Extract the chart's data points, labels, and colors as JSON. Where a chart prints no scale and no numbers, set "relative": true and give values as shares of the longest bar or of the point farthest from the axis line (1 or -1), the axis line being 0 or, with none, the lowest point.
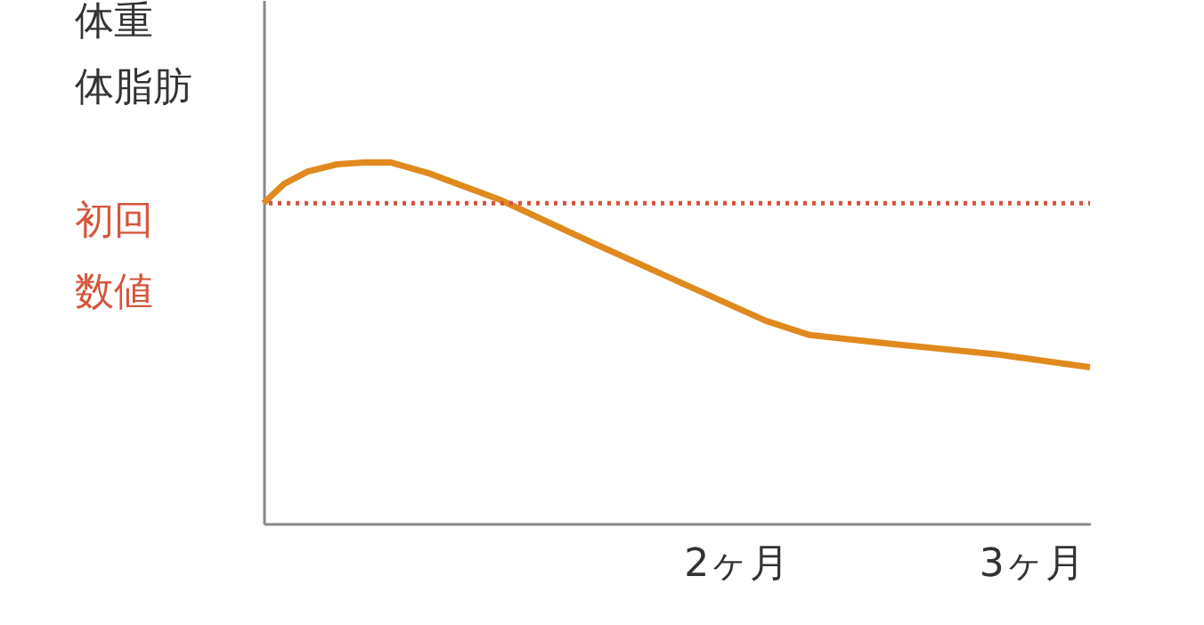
{
  "chart_data": {
    "type": "line",
    "relative": true,
    "ylabel": "体重体脂肪",
    "x": [
      0.4,
      0.47,
      0.55,
      0.65,
      0.74,
      0.83,
      0.96,
      1.2,
      1.5,
      1.86,
      2.1,
      2.25,
      2.52,
      2.89,
      3.2
    ],
    "series": [
      {
        "color": "#e08a1e",
        "values": [
          0.887,
          0.941,
          0.975,
          0.995,
          1.0,
          1.0,
          0.97,
          0.897,
          0.783,
          0.65,
          0.562,
          0.522,
          0.498,
          0.468,
          0.433
        ]
      }
    ],
    "xlim": [
      0.4,
      3.2
    ],
    "xticks": [
      {
        "value": 2,
        "label": "2ヶ月"
      },
      {
        "value": 3,
        "label": "3ヶ月"
      }
    ],
    "ref_lines": [
      {
        "axis": "y",
        "value": 0.887,
        "label": "初回数値",
        "color": "#d6553c",
        "line_style": "dotted"
      }
    ],
    "grid": false,
    "legend": false,
    "marker": "none",
    "line_style": "solid"
  }
}
